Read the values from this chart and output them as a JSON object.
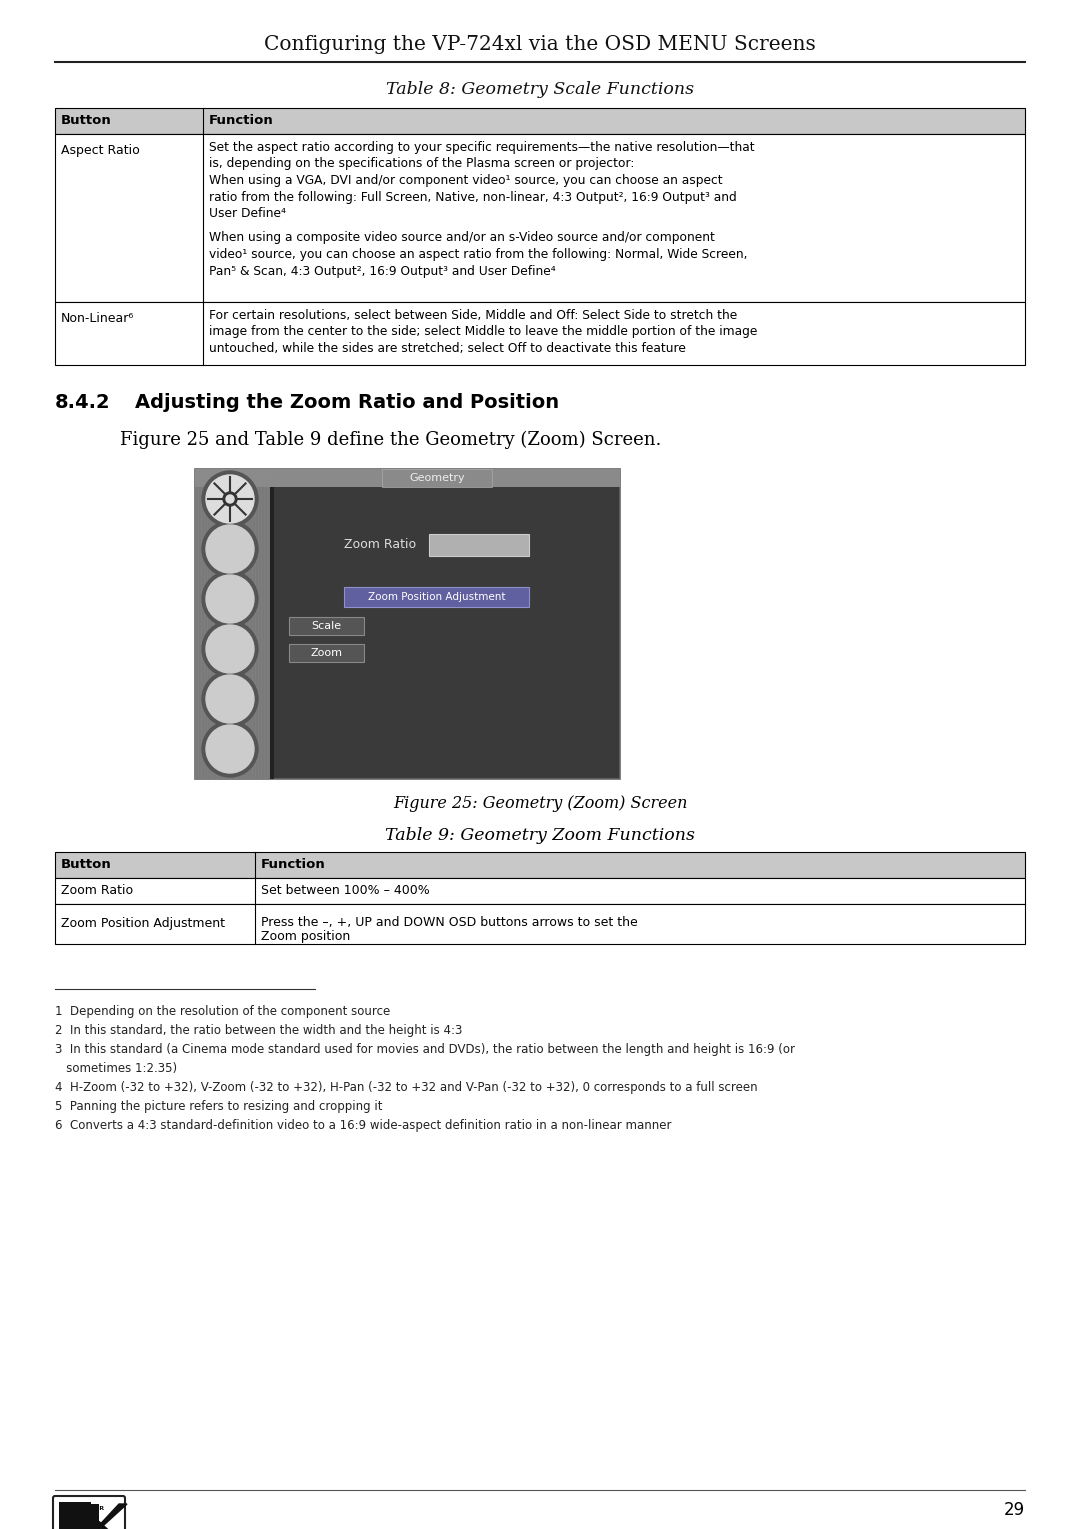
{
  "page_title": "Configuring the VP-724xl via the OSD MENU Screens",
  "table8_title": "Table 8: Geometry Scale Functions",
  "table8_header": [
    "Button",
    "Function"
  ],
  "table8_row1_button": "Aspect Ratio",
  "table8_row1_lines": [
    "Set the aspect ratio according to your specific requirements—the native resolution—that",
    "is, depending on the specifications of the Plasma screen or projector:",
    "When using a VGA, DVI and/or component video¹ source, you can choose an aspect",
    "ratio from the following: Full Screen, Native, non-linear, 4:3 Output², 16:9 Output³ and",
    "User Define⁴",
    "",
    "When using a composite video source and/or an s-Video source and/or component",
    "video¹ source, you can choose an aspect ratio from the following: Normal, Wide Screen,",
    "Pan⁵ & Scan, 4:3 Output², 16:9 Output³ and User Define⁴"
  ],
  "table8_row2_button": "Non-Linear⁶",
  "table8_row2_lines": [
    "For certain resolutions, select between Side, Middle and Off: Select Side to stretch the",
    "image from the center to the side; select Middle to leave the middle portion of the image",
    "untouched, while the sides are stretched; select Off to deactivate this feature"
  ],
  "section_number": "8.4.2",
  "section_title": "Adjusting the Zoom Ratio and Position",
  "figure_caption_line": "Figure 25 and Table 9 define the Geometry (Zoom) Screen.",
  "figure_caption": "Figure 25: Geometry (Zoom) Screen",
  "table9_title": "Table 9: Geometry Zoom Functions",
  "table9_header": [
    "Button",
    "Function"
  ],
  "table9_rows": [
    {
      "button": "Zoom Ratio",
      "function": "Set between 100% – 400%"
    },
    {
      "button": "Zoom Position Adjustment",
      "function_line1": "Press the –, +, UP and DOWN OSD buttons arrows to set the",
      "function_line2": "Zoom position"
    }
  ],
  "footnotes": [
    "1  Depending on the resolution of the component source",
    "2  In this standard, the ratio between the width and the height is 4:3",
    "3  In this standard (a Cinema mode standard used for movies and DVDs), the ratio between the length and height is 16:9 (or",
    "   sometimes 1:2.35)",
    "4  H-Zoom (-32 to +32), V-Zoom (-32 to +32), H-Pan (-32 to +32 and V-Pan (-32 to +32), 0 corresponds to a full screen",
    "5  Panning the picture refers to resizing and cropping it",
    "6  Converts a 4:3 standard-definition video to a 16:9 wide-aspect definition ratio in a non-linear manner"
  ],
  "page_number": "29",
  "bg_color": "#ffffff",
  "header_bg": "#c8c8c8",
  "table_border": "#000000"
}
